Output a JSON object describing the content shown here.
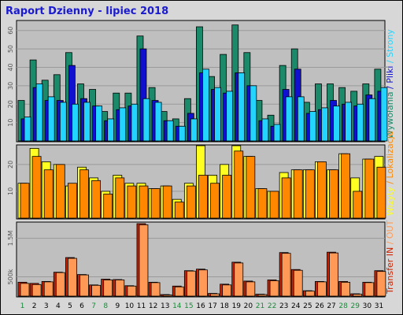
{
  "chart_data": {
    "type": "bar",
    "title": "Raport Dzienny -  lipiec 2018",
    "days": [
      "1",
      "2",
      "3",
      "4",
      "5",
      "6",
      "7",
      "8",
      "9",
      "10",
      "11",
      "12",
      "13",
      "14",
      "15",
      "16",
      "17",
      "18",
      "19",
      "20",
      "21",
      "22",
      "23",
      "24",
      "25",
      "26",
      "27",
      "28",
      "29",
      "30",
      "31"
    ],
    "weekend_days": [
      "1",
      "7",
      "8",
      "14",
      "15",
      "21",
      "22",
      "28",
      "29"
    ],
    "colors": {
      "hits": "#1a8a6a",
      "files": "#1010d0",
      "pages": "#22d4ff",
      "visits": "#ffff22",
      "sites": "#ff8800",
      "kb_in": "#cc2200",
      "kb_out": "#ff9955",
      "weekday_label": "#000000",
      "weekend_label": "#1a8a3a"
    },
    "panels": [
      {
        "id": "top",
        "ylim": [
          0,
          65
        ],
        "ticks": [
          "10",
          "20",
          "30",
          "40",
          "50",
          "60"
        ],
        "tick_values": [
          10,
          20,
          30,
          40,
          50,
          60
        ],
        "legend": [
          "Wywołania",
          "/",
          "Pliki",
          "/",
          "Strony"
        ],
        "legend_colors": [
          "#1a8a6a",
          "#1010d0",
          "#1010d0",
          "#22d4ff",
          "#22d4ff"
        ],
        "series": [
          {
            "name": "Wywołania",
            "key": "hits",
            "values": [
              22,
              44,
              33,
              36,
              48,
              31,
              28,
              16,
              26,
              26,
              57,
              29,
              16,
              12,
              23,
              62,
              35,
              47,
              63,
              48,
              22,
              14,
              41,
              50,
              21,
              31,
              31,
              29,
              27,
              31,
              39
            ]
          },
          {
            "name": "Pliki",
            "key": "files",
            "values": [
              12,
              29,
              22,
              22,
              41,
              23,
              19,
              11,
              17,
              19,
              50,
              22,
              11,
              8,
              15,
              37,
              28,
              26,
              37,
              30,
              11,
              8,
              28,
              39,
              15,
              17,
              22,
              20,
              19,
              25,
              27
            ]
          },
          {
            "name": "Strony",
            "key": "pages",
            "values": [
              13,
              31,
              24,
              21,
              20,
              21,
              19,
              12,
              18,
              20,
              23,
              21,
              11,
              8,
              12,
              39,
              29,
              27,
              37,
              30,
              12,
              9,
              24,
              24,
              16,
              18,
              19,
              21,
              20,
              23,
              29
            ]
          }
        ]
      },
      {
        "id": "middle",
        "ylim": [
          0,
          27
        ],
        "ticks": [
          "10",
          "20"
        ],
        "tick_values": [
          10,
          20
        ],
        "legend": [
          "Wizyty",
          "/",
          "Lokalizacje"
        ],
        "legend_colors": [
          "#ffff22",
          "#ff8800",
          "#ff8800"
        ],
        "series": [
          {
            "name": "Wizyty",
            "key": "visits",
            "values": [
              13,
              26,
              21,
              20,
              12,
              19,
              15,
              10,
              16,
              13,
              13,
              11,
              12,
              7,
              13,
              27,
              16,
              20,
              27,
              23,
              11,
              10,
              17,
              18,
              18,
              21,
              18,
              24,
              15,
              22,
              23
            ]
          },
          {
            "name": "Lokalizacje",
            "key": "sites",
            "values": [
              13,
              23,
              18,
              20,
              13,
              18,
              14,
              9,
              15,
              12,
              12,
              11,
              12,
              6,
              12,
              16,
              13,
              16,
              25,
              23,
              11,
              10,
              15,
              18,
              18,
              21,
              18,
              24,
              10,
              22,
              19
            ]
          }
        ]
      },
      {
        "id": "bottom",
        "ylim": [
          0,
          1900000
        ],
        "ticks": [
          "500k",
          "1.5M"
        ],
        "tick_values": [
          500000,
          1500000
        ],
        "legend": [
          "Transfer",
          "IN",
          "/",
          "OUT"
        ],
        "legend_colors": [
          "#cc2200",
          "#cc2200",
          "#ff9955",
          "#ff9955"
        ],
        "series": [
          {
            "name": "Transfer",
            "key": "kb_in",
            "values": [
              360000,
              330000,
              380000,
              620000,
              1000000,
              560000,
              290000,
              440000,
              430000,
              270000,
              1880000,
              360000,
              40000,
              260000,
              660000,
              700000,
              70000,
              310000,
              880000,
              390000,
              50000,
              420000,
              1130000,
              690000,
              140000,
              380000,
              1140000,
              380000,
              60000,
              360000,
              660000
            ]
          },
          {
            "name": "Transfer OUT",
            "key": "kb_out",
            "values": [
              330000,
              300000,
              370000,
              610000,
              980000,
              550000,
              280000,
              420000,
              420000,
              260000,
              1850000,
              350000,
              30000,
              240000,
              650000,
              680000,
              60000,
              290000,
              860000,
              370000,
              40000,
              400000,
              1110000,
              670000,
              130000,
              370000,
              1120000,
              360000,
              50000,
              350000,
              640000
            ]
          }
        ]
      }
    ]
  }
}
